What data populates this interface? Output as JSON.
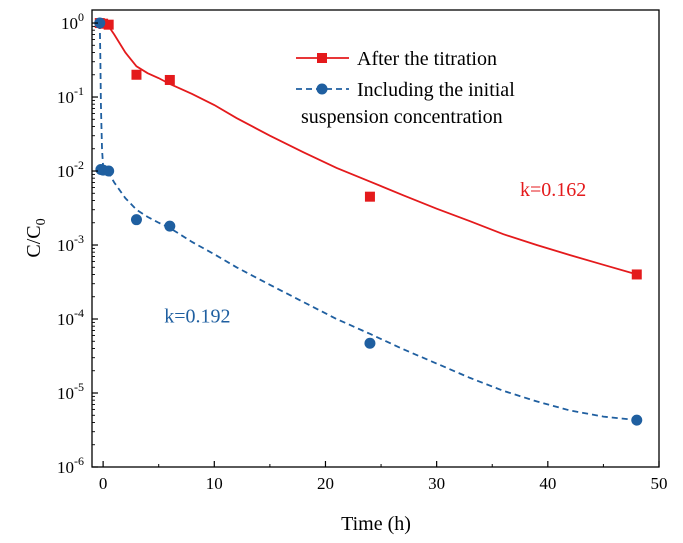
{
  "chart_data": {
    "type": "scatter",
    "title": "",
    "xlabel": "Time (h)",
    "ylabel": {
      "main": "C/C",
      "sub": "0"
    },
    "xlim": [
      -1,
      50
    ],
    "ylim": [
      1e-06,
      1.5
    ],
    "yscale": "log",
    "grid": false,
    "legend_position": "top-right",
    "x_ticks": [
      {
        "value": 0,
        "label": "0"
      },
      {
        "value": 10,
        "label": "10"
      },
      {
        "value": 20,
        "label": "20"
      },
      {
        "value": 30,
        "label": "30"
      },
      {
        "value": 40,
        "label": "40"
      },
      {
        "value": 50,
        "label": "50"
      }
    ],
    "y_ticks": [
      {
        "value": 1.0,
        "base": "10",
        "exp": "0"
      },
      {
        "value": 0.1,
        "base": "10",
        "exp": "-1"
      },
      {
        "value": 0.01,
        "base": "10",
        "exp": "-2"
      },
      {
        "value": 0.001,
        "base": "10",
        "exp": "-3"
      },
      {
        "value": 0.0001,
        "base": "10",
        "exp": "-4"
      },
      {
        "value": 1e-05,
        "base": "10",
        "exp": "-5"
      },
      {
        "value": 1e-06,
        "base": "10",
        "exp": "-6"
      }
    ],
    "series": [
      {
        "name": "After the titration",
        "color": "#e41a1c",
        "marker": "square",
        "line": "solid",
        "x": [
          -0.3,
          0,
          0.5,
          3,
          6,
          24,
          48
        ],
        "y": [
          1.0,
          0.98,
          0.95,
          0.2,
          0.17,
          0.0045,
          0.0004
        ],
        "fit_x": [
          0,
          0.5,
          1,
          2,
          3,
          4,
          5,
          6,
          8,
          10,
          12,
          15,
          18,
          21,
          24,
          27,
          30,
          33,
          36,
          39,
          42,
          45,
          48
        ],
        "fit_y": [
          1.0,
          0.9,
          0.7,
          0.4,
          0.26,
          0.21,
          0.18,
          0.15,
          0.11,
          0.078,
          0.052,
          0.03,
          0.018,
          0.011,
          0.0072,
          0.0047,
          0.0031,
          0.0021,
          0.0014,
          0.001,
          0.00073,
          0.00054,
          0.0004
        ]
      },
      {
        "name": "Including the initial suspension concentration",
        "color": "#1f5fa0",
        "marker": "circle",
        "line": "dashed",
        "x": [
          -0.3,
          -0.2,
          0,
          0.5,
          3,
          6,
          24,
          48
        ],
        "y": [
          1.0,
          0.0105,
          0.0103,
          0.01,
          0.0022,
          0.0018,
          4.7e-05,
          4.3e-06
        ],
        "fit_x": [
          -0.3,
          -0.25,
          -0.2,
          -0.1,
          0,
          0.5,
          1,
          2,
          3,
          4,
          5,
          6,
          8,
          10,
          12,
          15,
          18,
          21,
          24,
          27,
          30,
          33,
          36,
          39,
          42,
          45,
          48
        ],
        "fit_y": [
          1.0,
          0.35,
          0.08,
          0.02,
          0.0115,
          0.0095,
          0.007,
          0.0043,
          0.003,
          0.0024,
          0.002,
          0.0017,
          0.0011,
          0.00075,
          0.0005,
          0.00029,
          0.00017,
          0.0001,
          6.3e-05,
          3.9e-05,
          2.5e-05,
          1.6e-05,
          1.07e-05,
          7.7e-06,
          5.8e-06,
          4.8e-06,
          4.3e-06
        ]
      }
    ],
    "legend": [
      {
        "text": "After the titration"
      },
      {
        "text": "Including the initial"
      },
      {
        "text": "suspension concentration"
      }
    ],
    "annotations": [
      {
        "text": "k=0.162",
        "x": 37.5,
        "y": 0.0046,
        "color": "#e41a1c"
      },
      {
        "text": "k=0.192",
        "x": 5.5,
        "y": 9e-05,
        "color": "#1f5fa0"
      }
    ]
  }
}
